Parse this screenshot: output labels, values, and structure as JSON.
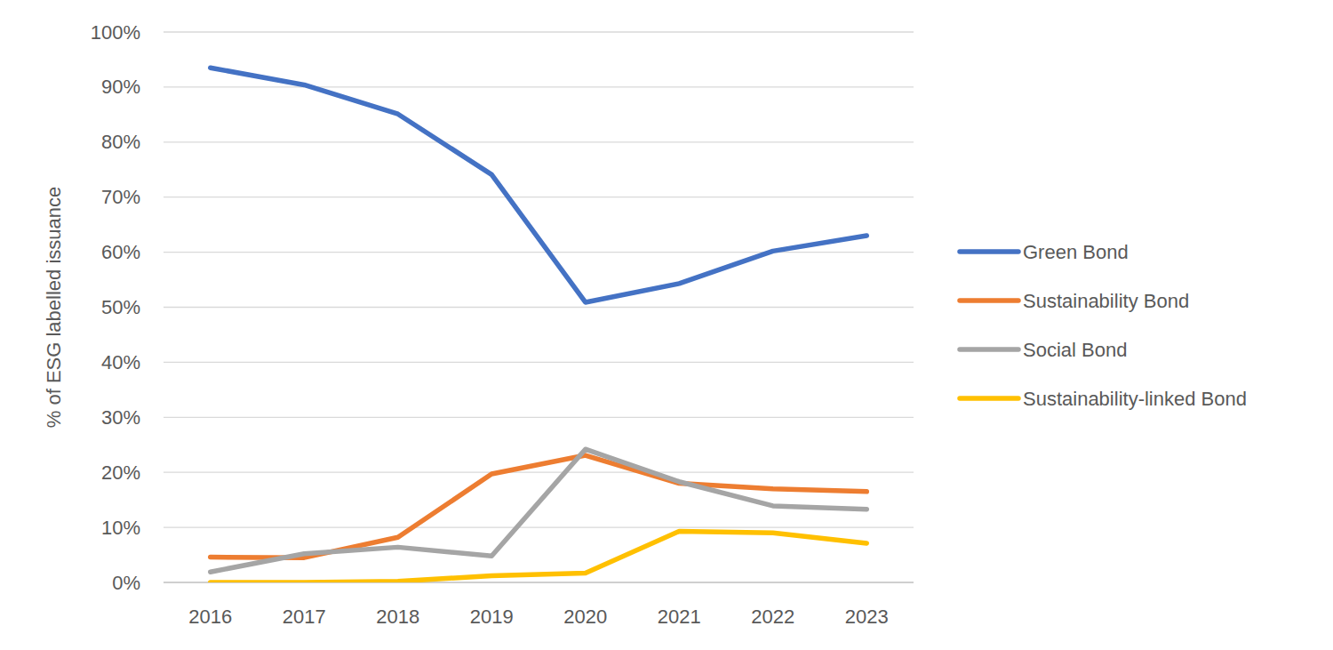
{
  "chart_data": {
    "type": "line",
    "y_label": "% of ESG labelled issuance",
    "categories": [
      "2016",
      "2017",
      "2018",
      "2019",
      "2020",
      "2021",
      "2022",
      "2023"
    ],
    "series": [
      {
        "name": "Green Bond",
        "color": "#4472c4",
        "values": [
          93.5,
          90.4,
          85.1,
          74.1,
          50.9,
          54.3,
          60.2,
          63.0
        ]
      },
      {
        "name": "Sustainability Bond",
        "color": "#ed7d31",
        "values": [
          4.6,
          4.5,
          8.2,
          19.7,
          23.1,
          18.0,
          17.0,
          16.5
        ]
      },
      {
        "name": "Social Bond",
        "color": "#a5a5a5",
        "values": [
          1.9,
          5.2,
          6.4,
          4.8,
          24.2,
          18.3,
          13.9,
          13.3
        ]
      },
      {
        "name": "Sustainability-linked Bond",
        "color": "#ffc000",
        "values": [
          0,
          0,
          0.2,
          1.2,
          1.7,
          9.3,
          9.0,
          7.1
        ]
      }
    ],
    "ylim": [
      0,
      100
    ],
    "yticks": [
      {
        "value": 0,
        "label": "0%"
      },
      {
        "value": 10,
        "label": "10%"
      },
      {
        "value": 20,
        "label": "20%"
      },
      {
        "value": 30,
        "label": "30%"
      },
      {
        "value": 40,
        "label": "40%"
      },
      {
        "value": 50,
        "label": "50%"
      },
      {
        "value": 60,
        "label": "60%"
      },
      {
        "value": 70,
        "label": "70%"
      },
      {
        "value": 80,
        "label": "80%"
      },
      {
        "value": 90,
        "label": "90%"
      },
      {
        "value": 100,
        "label": "100%"
      }
    ],
    "grid": true,
    "legend": "right"
  }
}
